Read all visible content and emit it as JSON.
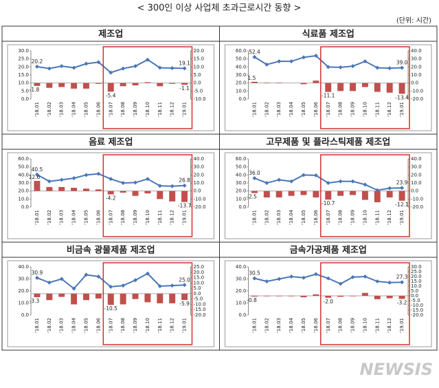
{
  "header": {
    "title": "< 300인 이상 사업체 초과근로시간 동향 >",
    "unit": "(단위: 시간)"
  },
  "watermark": "NEWSIS",
  "chart_data": [
    {
      "type": "combo",
      "title": "제조업",
      "categories": [
        "'18.01",
        "'18.02",
        "'18.03",
        "'18.04",
        "'18.05",
        "'18.06",
        "'18.07",
        "'18.08",
        "'18.09",
        "'18.10",
        "'18.11",
        "'18.12",
        "'19.01"
      ],
      "series": [
        {
          "type": "line",
          "color": "#4a76b8",
          "values": [
            20.2,
            19,
            20.5,
            19.5,
            22,
            23,
            16.5,
            19,
            20.5,
            24.5,
            19.5,
            19.3,
            19.1
          ],
          "value_labels": [
            "20.2",
            null,
            null,
            null,
            null,
            null,
            null,
            null,
            null,
            null,
            null,
            null,
            "19.1"
          ]
        },
        {
          "type": "bar",
          "axis": "y2",
          "color": "#c0504d",
          "values": [
            -1.8,
            -3,
            -2.5,
            -3.5,
            -3.5,
            -0.5,
            -5.4,
            -2,
            -1.5,
            0.5,
            -2,
            -0.5,
            -1.1
          ],
          "value_labels": [
            "-1.8",
            null,
            null,
            null,
            null,
            null,
            "-5.4",
            null,
            null,
            null,
            null,
            null,
            "-1.1"
          ]
        }
      ],
      "ylim": [
        0,
        30
      ],
      "yticks": [
        {
          "value": 0,
          "label": "0.0"
        },
        {
          "value": 5,
          "label": "5.0"
        },
        {
          "value": 10,
          "label": "10.0"
        },
        {
          "value": 15,
          "label": "15.0"
        },
        {
          "value": 20,
          "label": "20.0"
        },
        {
          "value": 25,
          "label": "25.0"
        },
        {
          "value": 30,
          "label": "30.0"
        }
      ],
      "y2lim": [
        -10,
        20
      ],
      "y2ticks": [
        {
          "value": -10,
          "label": "-10.0"
        },
        {
          "value": -5,
          "label": "-5.0"
        },
        {
          "value": 0,
          "label": "0.0"
        },
        {
          "value": 5,
          "label": "5.0"
        },
        {
          "value": 10,
          "label": "10.0"
        },
        {
          "value": 15,
          "label": "15.0"
        },
        {
          "value": 20,
          "label": "20.0"
        }
      ]
    },
    {
      "type": "combo",
      "title": "식료품 제조업",
      "categories": [
        "'18.01",
        "'18.02",
        "'18.03",
        "'18.04",
        "'18.05",
        "'18.06",
        "'18.07",
        "'18.08",
        "'18.09",
        "'18.10",
        "'18.11",
        "'18.12",
        "'19.01"
      ],
      "series": [
        {
          "type": "line",
          "color": "#4a76b8",
          "values": [
            52.4,
            43,
            47,
            47,
            52,
            54,
            40,
            39.5,
            41,
            47,
            39,
            38.5,
            39
          ],
          "value_labels": [
            "52.4",
            null,
            null,
            null,
            null,
            null,
            null,
            null,
            null,
            null,
            null,
            null,
            "39.0"
          ]
        },
        {
          "type": "bar",
          "axis": "y2",
          "color": "#c0504d",
          "values": [
            1.5,
            0.5,
            0.5,
            0,
            -1.5,
            3,
            -11.1,
            -10,
            -10,
            -5,
            -11,
            -12,
            -13.4
          ],
          "value_labels": [
            "1.5",
            null,
            null,
            null,
            null,
            null,
            "-11.1",
            null,
            null,
            null,
            null,
            null,
            "-13.4"
          ]
        }
      ],
      "ylim": [
        0,
        60
      ],
      "yticks": [
        {
          "value": 0,
          "label": "0.0"
        },
        {
          "value": 10,
          "label": "10.0"
        },
        {
          "value": 20,
          "label": "20.0"
        },
        {
          "value": 30,
          "label": "30.0"
        },
        {
          "value": 40,
          "label": "40.0"
        },
        {
          "value": 50,
          "label": "50.0"
        },
        {
          "value": 60,
          "label": "60.0"
        }
      ],
      "y2lim": [
        -20,
        40
      ],
      "y2ticks": [
        {
          "value": -20,
          "label": "-20.0"
        },
        {
          "value": -10,
          "label": "-10.0"
        },
        {
          "value": 0,
          "label": "0.0"
        },
        {
          "value": 10,
          "label": "10.0"
        },
        {
          "value": 20,
          "label": "20.0"
        },
        {
          "value": 30,
          "label": "30.0"
        },
        {
          "value": 40,
          "label": "40.0"
        }
      ]
    },
    {
      "type": "combo",
      "title": "음료 제조업",
      "categories": [
        "'18.01",
        "'18.02",
        "'18.03",
        "'18.04",
        "'18.05",
        "'18.06",
        "'18.07",
        "'18.08",
        "'18.09",
        "'18.10",
        "'18.11",
        "'18.12",
        "'19.01"
      ],
      "series": [
        {
          "type": "line",
          "color": "#4a76b8",
          "values": [
            40.5,
            32,
            34,
            36,
            40,
            41.5,
            35,
            30,
            30.5,
            35,
            26.5,
            26,
            26.8
          ],
          "value_labels": [
            "40.5",
            null,
            null,
            null,
            null,
            null,
            null,
            null,
            null,
            null,
            null,
            null,
            "26.8"
          ]
        },
        {
          "type": "bar",
          "axis": "y2",
          "color": "#c0504d",
          "values": [
            12.6,
            5,
            5,
            4,
            3,
            2,
            -4.2,
            -2,
            -6,
            -3,
            -10,
            -13,
            -13.7
          ],
          "value_labels": [
            "12.6",
            null,
            null,
            null,
            null,
            null,
            "-4.2",
            null,
            null,
            null,
            null,
            null,
            "-13.7"
          ]
        }
      ],
      "ylim": [
        0,
        60
      ],
      "yticks": [
        {
          "value": 0,
          "label": "0.0"
        },
        {
          "value": 10,
          "label": "10.0"
        },
        {
          "value": 20,
          "label": "20.0"
        },
        {
          "value": 30,
          "label": "30.0"
        },
        {
          "value": 40,
          "label": "40.0"
        },
        {
          "value": 50,
          "label": "50.0"
        },
        {
          "value": 60,
          "label": "60.0"
        }
      ],
      "y2lim": [
        -20,
        40
      ],
      "y2ticks": [
        {
          "value": -20,
          "label": "-20.0"
        },
        {
          "value": -10,
          "label": "-10.0"
        },
        {
          "value": 0,
          "label": "0.0"
        },
        {
          "value": 10,
          "label": "10.0"
        },
        {
          "value": 20,
          "label": "20.0"
        },
        {
          "value": 30,
          "label": "30.0"
        },
        {
          "value": 40,
          "label": "40.0"
        }
      ]
    },
    {
      "type": "combo",
      "title": "고무제품 및 플라스틱제품 제조업",
      "categories": [
        "'18.01",
        "'18.02",
        "'18.03",
        "'18.04",
        "'18.05",
        "'18.06",
        "'18.07",
        "'18.08",
        "'18.09",
        "'18.10",
        "'18.11",
        "'18.12",
        "'19.01"
      ],
      "series": [
        {
          "type": "line",
          "color": "#4a76b8",
          "values": [
            36,
            30,
            34,
            32,
            40,
            39.5,
            30,
            32,
            32,
            28,
            21,
            23.5,
            23.9
          ],
          "value_labels": [
            "36.0",
            null,
            null,
            null,
            null,
            null,
            null,
            null,
            null,
            null,
            null,
            null,
            "23.9"
          ]
        },
        {
          "type": "bar",
          "axis": "y2",
          "color": "#c0504d",
          "values": [
            -2.5,
            -8,
            -8,
            -6,
            -5,
            -8,
            -10.7,
            -6,
            -5,
            -11,
            -14,
            -8,
            -12.1
          ],
          "value_labels": [
            "-2.5",
            null,
            null,
            null,
            null,
            null,
            "-10.7",
            null,
            null,
            null,
            null,
            null,
            "-12.1"
          ]
        }
      ],
      "ylim": [
        0,
        60
      ],
      "yticks": [
        {
          "value": 0,
          "label": "0.0"
        },
        {
          "value": 10,
          "label": "10.0"
        },
        {
          "value": 20,
          "label": "20.0"
        },
        {
          "value": 30,
          "label": "30.0"
        },
        {
          "value": 40,
          "label": "40.0"
        },
        {
          "value": 50,
          "label": "50.0"
        },
        {
          "value": 60,
          "label": "60.0"
        }
      ],
      "y2lim": [
        -20,
        40
      ],
      "y2ticks": [
        {
          "value": -20,
          "label": "-20.0"
        },
        {
          "value": -10,
          "label": "-10.0"
        },
        {
          "value": 0,
          "label": "0.0"
        },
        {
          "value": 10,
          "label": "10.0"
        },
        {
          "value": 20,
          "label": "20.0"
        },
        {
          "value": 30,
          "label": "30.0"
        },
        {
          "value": 40,
          "label": "40.0"
        }
      ]
    },
    {
      "type": "combo",
      "title": "비금속 광물제품 제조업",
      "categories": [
        "'18.01",
        "'18.02",
        "'18.03",
        "'18.04",
        "'18.05",
        "'18.06",
        "'18.07",
        "'18.08",
        "'18.09",
        "'18.10",
        "'18.11",
        "'18.12",
        "'19.01"
      ],
      "series": [
        {
          "type": "line",
          "color": "#4a76b8",
          "values": [
            30.9,
            27,
            30,
            22,
            33.5,
            32,
            23.5,
            24.5,
            29,
            34.5,
            24,
            24.5,
            25
          ],
          "value_labels": [
            "30.9",
            null,
            null,
            null,
            null,
            null,
            null,
            null,
            null,
            null,
            null,
            null,
            "25.0"
          ]
        },
        {
          "type": "bar",
          "axis": "y2",
          "color": "#c0504d",
          "values": [
            -3.3,
            -6,
            -3,
            -10,
            -6,
            -4.5,
            -10.5,
            -10,
            -5,
            -8,
            -9,
            -9,
            -5.9
          ],
          "value_labels": [
            "-3.3",
            null,
            null,
            null,
            null,
            null,
            "-10.5",
            null,
            null,
            null,
            null,
            null,
            "-5.9"
          ]
        }
      ],
      "ylim": [
        0,
        40
      ],
      "yticks": [
        {
          "value": 0,
          "label": "0.0"
        },
        {
          "value": 10,
          "label": "10.0"
        },
        {
          "value": 20,
          "label": "20.0"
        },
        {
          "value": 30,
          "label": "30.0"
        },
        {
          "value": 40,
          "label": "40.0"
        }
      ],
      "y2lim": [
        -20,
        25
      ],
      "y2ticks": [
        {
          "value": -20,
          "label": "-20.0"
        },
        {
          "value": -15,
          "label": "-15.0"
        },
        {
          "value": -10,
          "label": "-10.0"
        },
        {
          "value": -5,
          "label": "-5.0"
        },
        {
          "value": 0,
          "label": "0.0"
        },
        {
          "value": 5,
          "label": "5.0"
        },
        {
          "value": 10,
          "label": "10.0"
        },
        {
          "value": 15,
          "label": "15.0"
        },
        {
          "value": 20,
          "label": "20.0"
        },
        {
          "value": 25,
          "label": "25.0"
        }
      ]
    },
    {
      "type": "combo",
      "title": "금속가공제품 제조업",
      "categories": [
        "'18.01",
        "'18.02",
        "'18.03",
        "'18.04",
        "'18.05",
        "'18.06",
        "'18.07",
        "'18.08",
        "'18.09",
        "'18.10",
        "'18.11",
        "'18.12",
        "'19.01"
      ],
      "series": [
        {
          "type": "line",
          "color": "#4a76b8",
          "values": [
            30.5,
            28,
            30,
            32,
            31,
            34,
            30.5,
            26,
            31.5,
            32,
            28,
            27,
            27.3
          ],
          "value_labels": [
            "30.5",
            null,
            null,
            null,
            null,
            null,
            null,
            null,
            null,
            null,
            null,
            null,
            "27.3"
          ]
        },
        {
          "type": "bar",
          "axis": "y2",
          "color": "#c0504d",
          "values": [
            -0.8,
            -0.5,
            -0.5,
            -0.5,
            -1.5,
            1.5,
            -2,
            -1,
            -0.5,
            3,
            -3.5,
            -2.5,
            -3.2
          ],
          "value_labels": [
            "-0.8",
            null,
            null,
            null,
            null,
            null,
            "-2.0",
            null,
            null,
            null,
            null,
            null,
            "-3.2"
          ]
        }
      ],
      "ylim": [
        0,
        40
      ],
      "yticks": [
        {
          "value": 0,
          "label": "0.0"
        },
        {
          "value": 10,
          "label": "10.0"
        },
        {
          "value": 20,
          "label": "20.0"
        },
        {
          "value": 30,
          "label": "30.0"
        },
        {
          "value": 40,
          "label": "40.0"
        }
      ],
      "y2lim": [
        -20,
        30
      ],
      "y2ticks": [
        {
          "value": -20,
          "label": "-20.0"
        },
        {
          "value": -15,
          "label": "-15.0"
        },
        {
          "value": -10,
          "label": "-10.0"
        },
        {
          "value": -5,
          "label": "-5.0"
        },
        {
          "value": 0,
          "label": "0.0"
        },
        {
          "value": 5,
          "label": "5.0"
        },
        {
          "value": 10,
          "label": "10.0"
        },
        {
          "value": 15,
          "label": "15.0"
        },
        {
          "value": 20,
          "label": "20.0"
        },
        {
          "value": 25,
          "label": "25.0"
        },
        {
          "value": 30,
          "label": "30.0"
        }
      ]
    }
  ]
}
